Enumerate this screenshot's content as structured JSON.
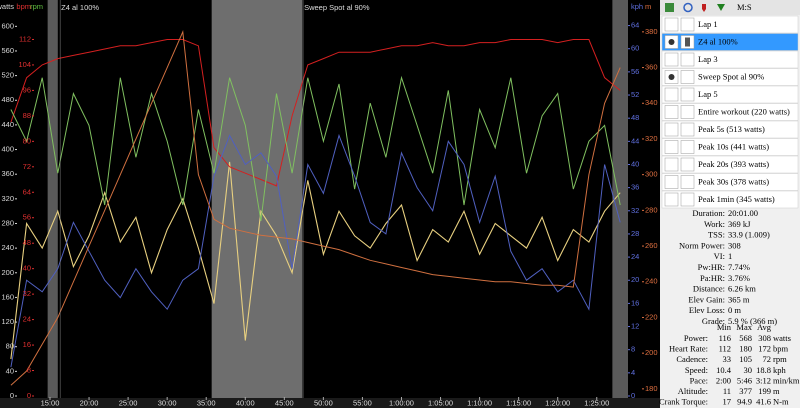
{
  "chart_data": {
    "type": "line",
    "xlim": [
      8.6,
      89.0
    ],
    "xticks": [
      {
        "value": 15,
        "label": "15:00"
      },
      {
        "value": 20,
        "label": "20:00"
      },
      {
        "value": 25,
        "label": "25:00"
      },
      {
        "value": 30,
        "label": "30:00"
      },
      {
        "value": 35,
        "label": "35:00"
      },
      {
        "value": 40,
        "label": "40:00"
      },
      {
        "value": 45,
        "label": "45:00"
      },
      {
        "value": 50,
        "label": "50:00"
      },
      {
        "value": 55,
        "label": "55:00"
      },
      {
        "value": 60,
        "label": "1:00:00"
      },
      {
        "value": 65,
        "label": "1:05:00"
      },
      {
        "value": 70,
        "label": "1:10:00"
      },
      {
        "value": 75,
        "label": "1:15:00"
      },
      {
        "value": 80,
        "label": "1:20:00"
      },
      {
        "value": 85,
        "label": "1:25:00"
      }
    ],
    "shaded": [
      [
        14.7,
        16.0
      ],
      [
        35.7,
        47.3
      ],
      [
        87.0,
        89.0
      ]
    ],
    "intervals": [
      {
        "name": "Z4 al 100%",
        "start": 16.3
      },
      {
        "name": "Sweep Spot al 90%",
        "start": 47.4
      }
    ],
    "axes": [
      {
        "name": "watts",
        "side": "left",
        "color": "#d8d8d8",
        "ylim": [
          0,
          620
        ],
        "yticks": [
          0,
          40,
          80,
          120,
          160,
          200,
          240,
          280,
          320,
          360,
          400,
          440,
          480,
          520,
          560,
          600
        ]
      },
      {
        "name": "bpm",
        "side": "left",
        "color": "#e03030",
        "ylim": [
          0,
          120
        ],
        "yticks": [
          0,
          8,
          16,
          24,
          32,
          40,
          48,
          56,
          64,
          72,
          80,
          88,
          96,
          104,
          112
        ]
      },
      {
        "name": "rpm",
        "side": "left",
        "color": "#60c040",
        "ylim": [
          0,
          120
        ],
        "yticks": []
      },
      {
        "name": "kph",
        "side": "right",
        "color": "#6070e0",
        "ylim": [
          0,
          66
        ],
        "yticks": [
          0,
          4,
          8,
          12,
          16,
          20,
          24,
          28,
          32,
          36,
          40,
          44,
          48,
          52,
          56,
          60,
          64
        ]
      },
      {
        "name": "m",
        "side": "right",
        "color": "#e07040",
        "ylim": [
          176,
          390
        ],
        "yticks": [
          180,
          200,
          220,
          240,
          260,
          280,
          300,
          320,
          340,
          360,
          380
        ]
      }
    ],
    "x": [
      10,
      12,
      14,
      16,
      18,
      20,
      22,
      24,
      26,
      28,
      30,
      32,
      34,
      36,
      38,
      40,
      42,
      44,
      46,
      48,
      50,
      52,
      54,
      56,
      58,
      60,
      62,
      64,
      66,
      68,
      70,
      72,
      74,
      76,
      78,
      80,
      82,
      84,
      86,
      88
    ],
    "series": [
      {
        "name": "Power",
        "axis": 0,
        "color": "#e8d080",
        "values": [
          60,
          280,
          240,
          300,
          210,
          260,
          330,
          250,
          290,
          200,
          270,
          320,
          240,
          150,
          380,
          90,
          300,
          260,
          200,
          350,
          230,
          300,
          260,
          240,
          280,
          310,
          220,
          270,
          250,
          300,
          230,
          280,
          260,
          240,
          290,
          220,
          270,
          250,
          300,
          330
        ]
      },
      {
        "name": "Heart Rate",
        "axis": 1,
        "color": "#d42020",
        "values": [
          86,
          100,
          104,
          106,
          107,
          108,
          109,
          110,
          110,
          111,
          112,
          112,
          110,
          78,
          72,
          70,
          68,
          66,
          88,
          104,
          106,
          108,
          108,
          108,
          109,
          110,
          110,
          111,
          110,
          110,
          111,
          111,
          112,
          112,
          112,
          111,
          112,
          112,
          100,
          96
        ]
      },
      {
        "name": "Cadence",
        "axis": 2,
        "color": "#80c060",
        "values": [
          90,
          80,
          100,
          70,
          95,
          85,
          60,
          100,
          75,
          95,
          80,
          60,
          90,
          70,
          100,
          85,
          55,
          95,
          70,
          100,
          80,
          98,
          65,
          92,
          75,
          100,
          85,
          70,
          96,
          60,
          90,
          78,
          100,
          70,
          88,
          95,
          65,
          80,
          85,
          60
        ]
      },
      {
        "name": "Speed",
        "axis": 3,
        "color": "#5060c0",
        "values": [
          5,
          20,
          18,
          22,
          30,
          25,
          20,
          17,
          22,
          18,
          15,
          20,
          22,
          38,
          45,
          40,
          42,
          38,
          22,
          40,
          35,
          45,
          38,
          30,
          28,
          42,
          36,
          32,
          44,
          40,
          30,
          38,
          25,
          20,
          22,
          18,
          20,
          15,
          40,
          30
        ]
      },
      {
        "name": "Altitude",
        "axis": 4,
        "color": "#d07040",
        "values": [
          182,
          190,
          205,
          220,
          240,
          260,
          280,
          300,
          320,
          340,
          360,
          380,
          300,
          275,
          270,
          268,
          266,
          265,
          264,
          262,
          260,
          258,
          255,
          252,
          250,
          248,
          246,
          244,
          243,
          242,
          241,
          240,
          240,
          239,
          238,
          238,
          237,
          300,
          340,
          360
        ]
      }
    ]
  },
  "panel": {
    "toolbar": "M:S",
    "laps": [
      {
        "label": "Lap 1",
        "selected": false,
        "visible": false
      },
      {
        "label": "Z4 al 100%",
        "selected": true,
        "visible": true
      },
      {
        "label": "Lap 3",
        "selected": false,
        "visible": false
      },
      {
        "label": "Sweep Spot al 90%",
        "selected": false,
        "visible": true
      },
      {
        "label": "Lap 5",
        "selected": false,
        "visible": false
      },
      {
        "label": "Entire workout (220 watts)",
        "selected": false,
        "visible": false
      },
      {
        "label": "Peak 5s (513 watts)",
        "selected": false,
        "visible": false
      },
      {
        "label": "Peak 10s (441 watts)",
        "selected": false,
        "visible": false
      },
      {
        "label": "Peak 20s (393 watts)",
        "selected": false,
        "visible": false
      },
      {
        "label": "Peak 30s (378 watts)",
        "selected": false,
        "visible": false
      },
      {
        "label": "Peak 1min (345 watts)",
        "selected": false,
        "visible": false
      }
    ],
    "summary": [
      [
        "Duration:",
        "20:01.00"
      ],
      [
        "Work:",
        "369 kJ"
      ],
      [
        "TSS:",
        "33.9 (1.009)"
      ],
      [
        "Norm Power:",
        "308"
      ],
      [
        "VI:",
        "1"
      ],
      [
        "Pw:HR:",
        "7.74%"
      ],
      [
        "Pa:HR:",
        "3.76%"
      ],
      [
        "Distance:",
        "6.26 km"
      ],
      [
        "Elev Gain:",
        "365 m"
      ],
      [
        "Elev Loss:",
        "0 m"
      ],
      [
        "Grade:",
        "5.9 % (366 m)"
      ]
    ],
    "table": {
      "header": [
        "Min",
        "Max",
        "Avg"
      ],
      "rows": [
        [
          "Power:",
          "116",
          "568",
          "308",
          "watts"
        ],
        [
          "Heart Rate:",
          "112",
          "180",
          "172",
          "bpm"
        ],
        [
          "Cadence:",
          "33",
          "105",
          "72",
          "rpm"
        ],
        [
          "Speed:",
          "10.4",
          "30",
          "18.8",
          "kph"
        ],
        [
          "Pace:",
          "2:00",
          "5:46",
          "3:12",
          "min/km"
        ],
        [
          "Altitude:",
          "11",
          "377",
          "199",
          "m"
        ],
        [
          "Crank Torque:",
          "17",
          "94.9",
          "41.6",
          "N-m"
        ]
      ]
    }
  }
}
